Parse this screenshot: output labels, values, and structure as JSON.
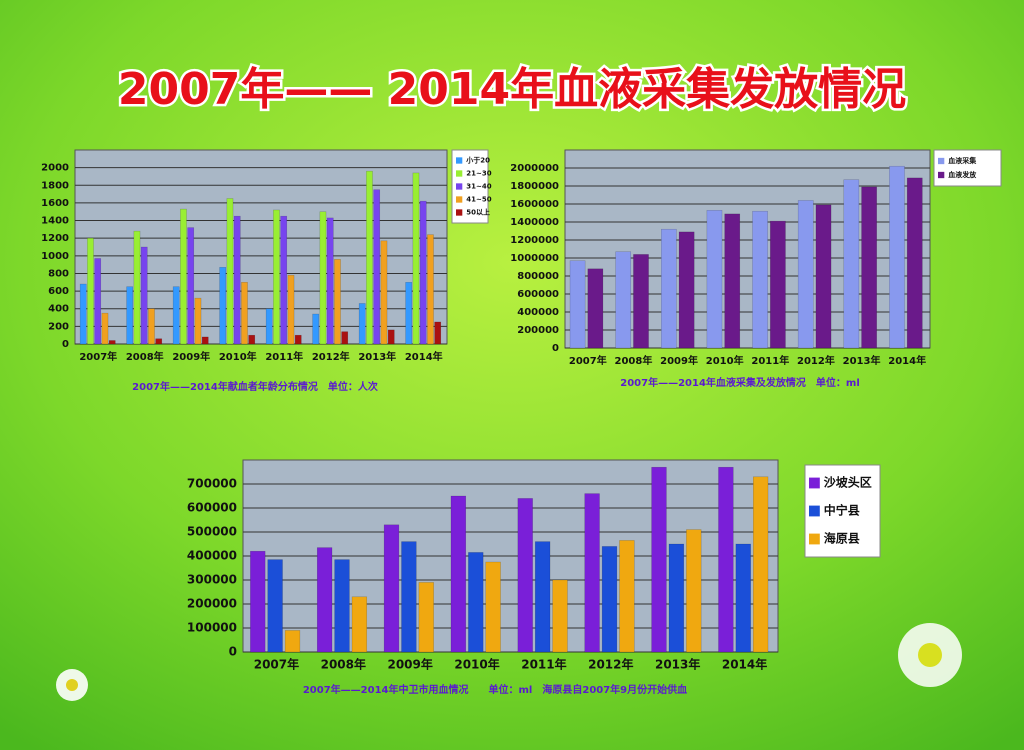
{
  "title": "2007年—— 2014年血液采集发放情况",
  "chart_data": [
    {
      "type": "bar",
      "caption": "2007年——2014年献血者年龄分布情况　单位：人次",
      "categories": [
        "2007年",
        "2008年",
        "2009年",
        "2010年",
        "2011年",
        "2012年",
        "2013年",
        "2014年"
      ],
      "series": [
        {
          "name": "小于20",
          "color": "#3399ff",
          "values": [
            680,
            650,
            650,
            870,
            400,
            340,
            460,
            700
          ]
        },
        {
          "name": "21~30",
          "color": "#99ee33",
          "values": [
            1200,
            1280,
            1530,
            1650,
            1520,
            1500,
            1960,
            1940
          ]
        },
        {
          "name": "31~40",
          "color": "#7744ee",
          "values": [
            970,
            1100,
            1320,
            1450,
            1450,
            1430,
            1750,
            1620
          ]
        },
        {
          "name": "41~50",
          "color": "#f0a020",
          "values": [
            350,
            400,
            520,
            700,
            780,
            960,
            1170,
            1240
          ]
        },
        {
          "name": "50以上",
          "color": "#aa1111",
          "values": [
            40,
            60,
            80,
            100,
            100,
            140,
            160,
            250
          ]
        }
      ],
      "ylim": [
        0,
        2200
      ],
      "yticks": [
        0,
        200,
        400,
        600,
        800,
        1000,
        1200,
        1400,
        1600,
        1800,
        2000
      ],
      "grid": true,
      "legend": "right"
    },
    {
      "type": "bar",
      "caption": "2007年——2014年血液采集及发放情况　单位：ml",
      "categories": [
        "2007年",
        "2008年",
        "2009年",
        "2010年",
        "2011年",
        "2012年",
        "2013年",
        "2014年"
      ],
      "series": [
        {
          "name": "血液采集",
          "color": "#8899ee",
          "values": [
            970000,
            1070000,
            1320000,
            1530000,
            1520000,
            1640000,
            1870000,
            2020000
          ]
        },
        {
          "name": "血液发放",
          "color": "#6a1a8a",
          "values": [
            880000,
            1040000,
            1290000,
            1490000,
            1410000,
            1590000,
            1790000,
            1890000
          ]
        }
      ],
      "ylim": [
        0,
        2200000
      ],
      "yticks": [
        0,
        200000,
        400000,
        600000,
        800000,
        1000000,
        1200000,
        1400000,
        1600000,
        1800000,
        2000000
      ],
      "grid": true,
      "legend": "right"
    },
    {
      "type": "bar",
      "caption": "2007年——2014年中卫市用血情况　　单位：ml　海原县自2007年9月份开始供血",
      "categories": [
        "2007年",
        "2008年",
        "2009年",
        "2010年",
        "2011年",
        "2012年",
        "2013年",
        "2014年"
      ],
      "series": [
        {
          "name": "沙坡头区",
          "color": "#7a1fd8",
          "values": [
            420000,
            435000,
            530000,
            650000,
            640000,
            660000,
            770000,
            770000
          ]
        },
        {
          "name": "中宁县",
          "color": "#1b4fd8",
          "values": [
            385000,
            385000,
            460000,
            415000,
            460000,
            440000,
            450000,
            450000
          ]
        },
        {
          "name": "海原县",
          "color": "#f0a810",
          "values": [
            90000,
            230000,
            290000,
            375000,
            300000,
            465000,
            510000,
            730000
          ]
        }
      ],
      "ylim": [
        0,
        800000
      ],
      "yticks": [
        0,
        100000,
        200000,
        300000,
        400000,
        500000,
        600000,
        700000
      ],
      "grid": true,
      "legend": "right"
    }
  ]
}
